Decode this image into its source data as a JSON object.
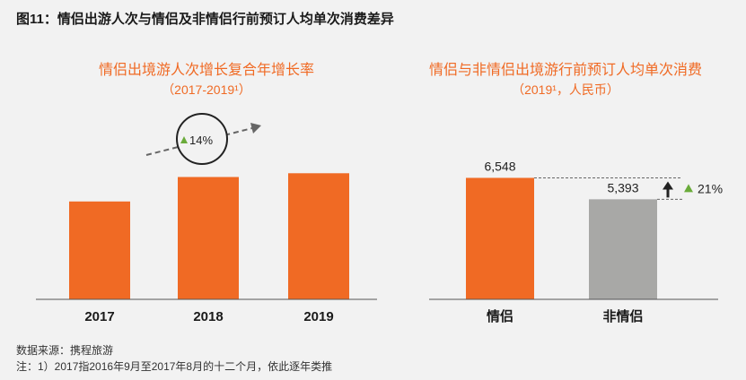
{
  "figure_title": "图11：情侣出游人次与情侣及非情侣行前预订人均单次消费差异",
  "chart_data": [
    {
      "type": "bar",
      "title": "情侣出境游人次增长复合年增长率",
      "subtitle": "（2017-2019¹）",
      "categories": [
        "2017",
        "2018",
        "2019"
      ],
      "values": [
        52,
        65,
        67
      ],
      "annotation": "14%",
      "colors": [
        "#f06a24",
        "#f06a24",
        "#f06a24"
      ]
    },
    {
      "type": "bar",
      "title": "情侣与非情侣出境游行前预订人均单次消费",
      "subtitle": "（2019¹，人民币）",
      "categories": [
        "情侣",
        "非情侣"
      ],
      "values": [
        6548,
        5393
      ],
      "value_labels": [
        "6,548",
        "5,393"
      ],
      "annotation": "21%",
      "colors": [
        "#f06a24",
        "#a8a8a6"
      ]
    }
  ],
  "footer": {
    "source": "数据来源：携程旅游",
    "note": "注：1）2017指2016年9月至2017年8月的十二个月，依此逐年类推"
  },
  "colors": {
    "accent": "#f06a24",
    "grey_bar": "#a8a8a6",
    "up_triangle": "#6aab3a"
  }
}
